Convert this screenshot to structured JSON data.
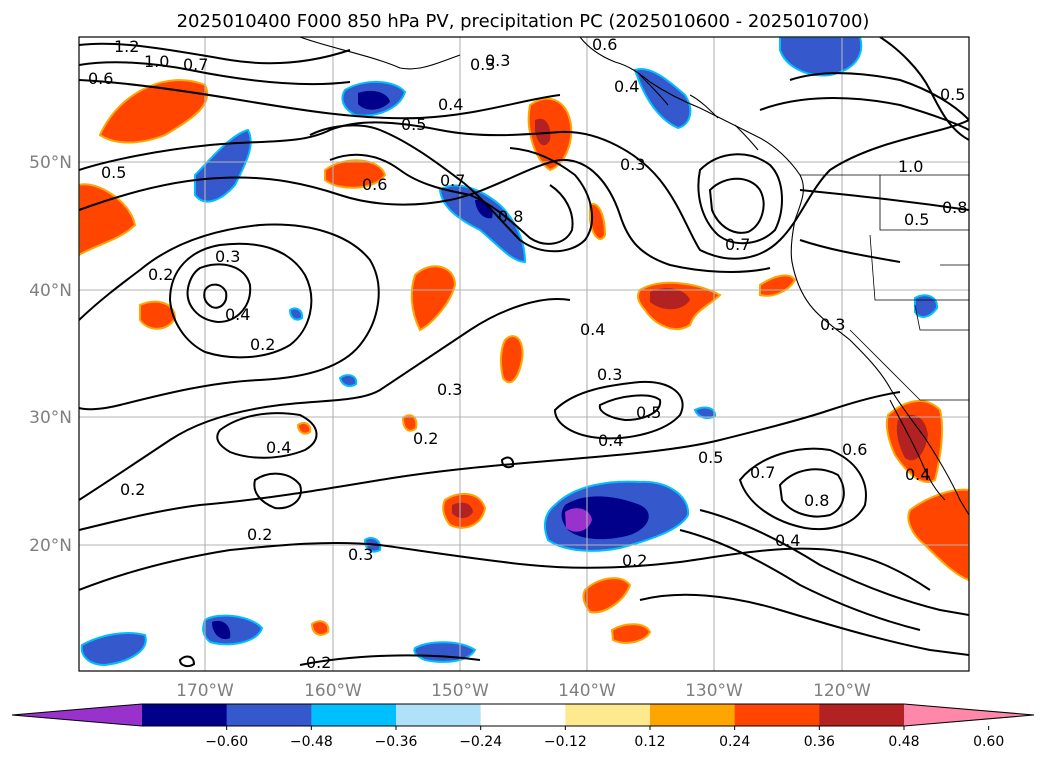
{
  "title": "2025010400 F000 850 hPa PV, precipitation PC (2025010600 - 2025010700)",
  "lat_labels": [
    "50°N",
    "40°N",
    "30°N",
    "20°N"
  ],
  "lon_labels": [
    "170°W",
    "160°W",
    "150°W",
    "140°W",
    "130°W",
    "120°W"
  ],
  "colorbar": {
    "colors": [
      "#9932cc",
      "#00008b",
      "#3558cc",
      "#00bfff",
      "#afe1f8",
      "#ffffff",
      "#ffe98f",
      "#ffa500",
      "#ff4500",
      "#b22222",
      "#ff88aa"
    ],
    "tick_labels": [
      "−0.60",
      "−0.48",
      "−0.36",
      "−0.24",
      "−0.12",
      "0.12",
      "0.24",
      "0.36",
      "0.48",
      "0.60"
    ]
  },
  "contour_labels": [
    "1.2",
    "1.0",
    "0.7",
    "0.6",
    "0.5",
    "0.6",
    "0.4",
    "0.3",
    "0.4",
    "0.6",
    "0.3",
    "0.7",
    "0.8",
    "0.4",
    "0.7",
    "1.0",
    "0.8",
    "0.5",
    "0.3",
    "0.2",
    "0.3",
    "0.4",
    "0.2",
    "0.4",
    "0.3",
    "0.3",
    "0.5",
    "0.4",
    "0.2",
    "0.4",
    "0.5",
    "0.7",
    "0.8",
    "0.6",
    "0.4",
    "0.2",
    "0.2",
    "0.3",
    "0.2",
    "0.2",
    "0.5",
    "0.5",
    "0.3"
  ]
}
